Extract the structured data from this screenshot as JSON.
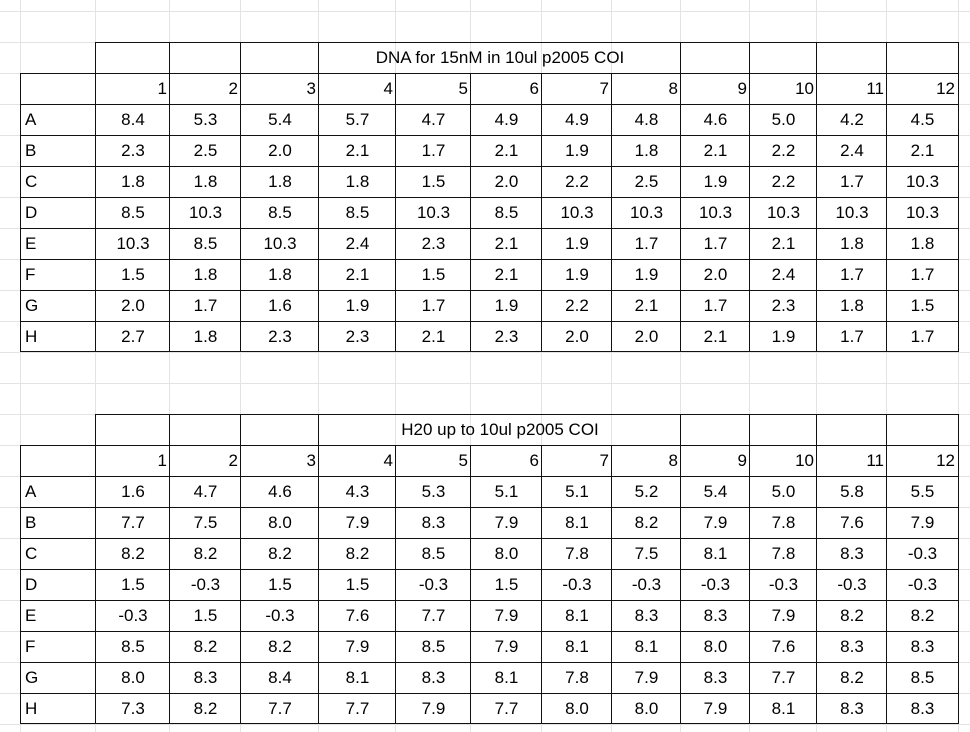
{
  "tables": [
    {
      "title": "DNA for 15nM in 10ul p2005 COI",
      "columns": [
        "1",
        "2",
        "3",
        "4",
        "5",
        "6",
        "7",
        "8",
        "9",
        "10",
        "11",
        "12"
      ],
      "rows": [
        {
          "label": "A",
          "values": [
            "8.4",
            "5.3",
            "5.4",
            "5.7",
            "4.7",
            "4.9",
            "4.9",
            "4.8",
            "4.6",
            "5.0",
            "4.2",
            "4.5"
          ]
        },
        {
          "label": "B",
          "values": [
            "2.3",
            "2.5",
            "2.0",
            "2.1",
            "1.7",
            "2.1",
            "1.9",
            "1.8",
            "2.1",
            "2.2",
            "2.4",
            "2.1"
          ]
        },
        {
          "label": "C",
          "values": [
            "1.8",
            "1.8",
            "1.8",
            "1.8",
            "1.5",
            "2.0",
            "2.2",
            "2.5",
            "1.9",
            "2.2",
            "1.7",
            "10.3"
          ]
        },
        {
          "label": "D",
          "values": [
            "8.5",
            "10.3",
            "8.5",
            "8.5",
            "10.3",
            "8.5",
            "10.3",
            "10.3",
            "10.3",
            "10.3",
            "10.3",
            "10.3"
          ]
        },
        {
          "label": "E",
          "values": [
            "10.3",
            "8.5",
            "10.3",
            "2.4",
            "2.3",
            "2.1",
            "1.9",
            "1.7",
            "1.7",
            "2.1",
            "1.8",
            "1.8"
          ]
        },
        {
          "label": "F",
          "values": [
            "1.5",
            "1.8",
            "1.8",
            "2.1",
            "1.5",
            "2.1",
            "1.9",
            "1.9",
            "2.0",
            "2.4",
            "1.7",
            "1.7"
          ]
        },
        {
          "label": "G",
          "values": [
            "2.0",
            "1.7",
            "1.6",
            "1.9",
            "1.7",
            "1.9",
            "2.2",
            "2.1",
            "1.7",
            "2.3",
            "1.8",
            "1.5"
          ]
        },
        {
          "label": "H",
          "values": [
            "2.7",
            "1.8",
            "2.3",
            "2.3",
            "2.1",
            "2.3",
            "2.0",
            "2.0",
            "2.1",
            "1.9",
            "1.7",
            "1.7"
          ]
        }
      ]
    },
    {
      "title": "H20 up to 10ul p2005 COI",
      "columns": [
        "1",
        "2",
        "3",
        "4",
        "5",
        "6",
        "7",
        "8",
        "9",
        "10",
        "11",
        "12"
      ],
      "rows": [
        {
          "label": "A",
          "values": [
            "1.6",
            "4.7",
            "4.6",
            "4.3",
            "5.3",
            "5.1",
            "5.1",
            "5.2",
            "5.4",
            "5.0",
            "5.8",
            "5.5"
          ]
        },
        {
          "label": "B",
          "values": [
            "7.7",
            "7.5",
            "8.0",
            "7.9",
            "8.3",
            "7.9",
            "8.1",
            "8.2",
            "7.9",
            "7.8",
            "7.6",
            "7.9"
          ]
        },
        {
          "label": "C",
          "values": [
            "8.2",
            "8.2",
            "8.2",
            "8.2",
            "8.5",
            "8.0",
            "7.8",
            "7.5",
            "8.1",
            "7.8",
            "8.3",
            "-0.3"
          ]
        },
        {
          "label": "D",
          "values": [
            "1.5",
            "-0.3",
            "1.5",
            "1.5",
            "-0.3",
            "1.5",
            "-0.3",
            "-0.3",
            "-0.3",
            "-0.3",
            "-0.3",
            "-0.3"
          ]
        },
        {
          "label": "E",
          "values": [
            "-0.3",
            "1.5",
            "-0.3",
            "7.6",
            "7.7",
            "7.9",
            "8.1",
            "8.3",
            "8.3",
            "7.9",
            "8.2",
            "8.2"
          ]
        },
        {
          "label": "F",
          "values": [
            "8.5",
            "8.2",
            "8.2",
            "7.9",
            "8.5",
            "7.9",
            "8.1",
            "8.1",
            "8.0",
            "7.6",
            "8.3",
            "8.3"
          ]
        },
        {
          "label": "G",
          "values": [
            "8.0",
            "8.3",
            "8.4",
            "8.1",
            "8.3",
            "8.1",
            "7.8",
            "7.9",
            "8.3",
            "7.7",
            "8.2",
            "8.5"
          ]
        },
        {
          "label": "H",
          "values": [
            "7.3",
            "8.2",
            "7.7",
            "7.7",
            "7.9",
            "7.7",
            "8.0",
            "8.0",
            "7.9",
            "8.1",
            "8.3",
            "8.3"
          ]
        }
      ]
    }
  ]
}
